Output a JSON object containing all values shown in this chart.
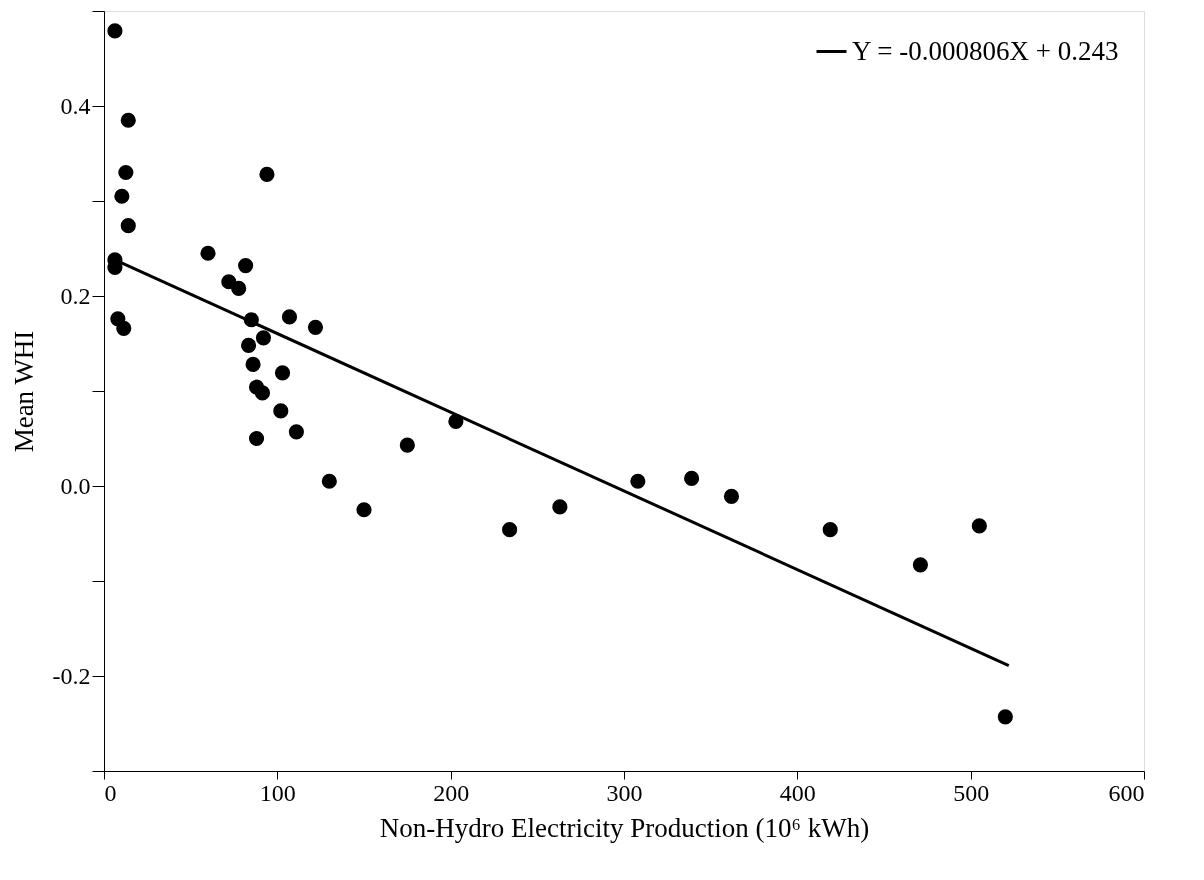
{
  "chart_data": {
    "type": "scatter",
    "xlabel": "Non-Hydro Electricity Production (10⁶ kWh)",
    "ylabel": "Mean WHI",
    "xlim": [
      0,
      600
    ],
    "ylim": [
      -0.3,
      0.5
    ],
    "xticks": [
      0,
      100,
      200,
      300,
      400,
      500,
      600
    ],
    "yticks": [
      {
        "value": -0.3,
        "label": null
      },
      -0.2,
      {
        "value": -0.1,
        "label": null
      },
      {
        "value": 0,
        "label": "0.0"
      },
      {
        "value": 0.1,
        "label": null
      },
      0.2,
      {
        "value": 0.3,
        "label": null
      },
      0.4,
      {
        "value": 0.5,
        "label": null
      }
    ],
    "grid": false,
    "legend": "top right",
    "marker": "circle",
    "series": [
      {
        "color": "#000000",
        "x": [
          6.3,
          14,
          12.6,
          10.3,
          14,
          6.3,
          6.3,
          8,
          11.4,
          60,
          72,
          77.7,
          81.7,
          85,
          83.4,
          86,
          88,
          91.4,
          92,
          94,
          88,
          102,
          103,
          107,
          111,
          122,
          130,
          150,
          175,
          203,
          234,
          263,
          308,
          339,
          362,
          419,
          471,
          505,
          520
        ],
        "values": [
          0.479,
          0.385,
          0.33,
          0.305,
          0.274,
          0.238,
          0.23,
          0.176,
          0.166,
          0.245,
          0.215,
          0.208,
          0.232,
          0.175,
          0.148,
          0.128,
          0.104,
          0.098,
          0.156,
          0.328,
          0.05,
          0.079,
          0.119,
          0.178,
          0.057,
          0.167,
          0.005,
          -0.025,
          0.043,
          0.068,
          -0.046,
          -0.022,
          0.005,
          0.008,
          -0.011,
          -0.046,
          -0.083,
          -0.042,
          -0.243
        ]
      },
      {
        "type": "line",
        "name": "Y = -0.000806X + 0.243",
        "color": "#000000",
        "line_style": "solid",
        "marker": "none",
        "x": [
          6.3,
          522
        ],
        "values": [
          0.238,
          -0.189
        ]
      }
    ]
  }
}
